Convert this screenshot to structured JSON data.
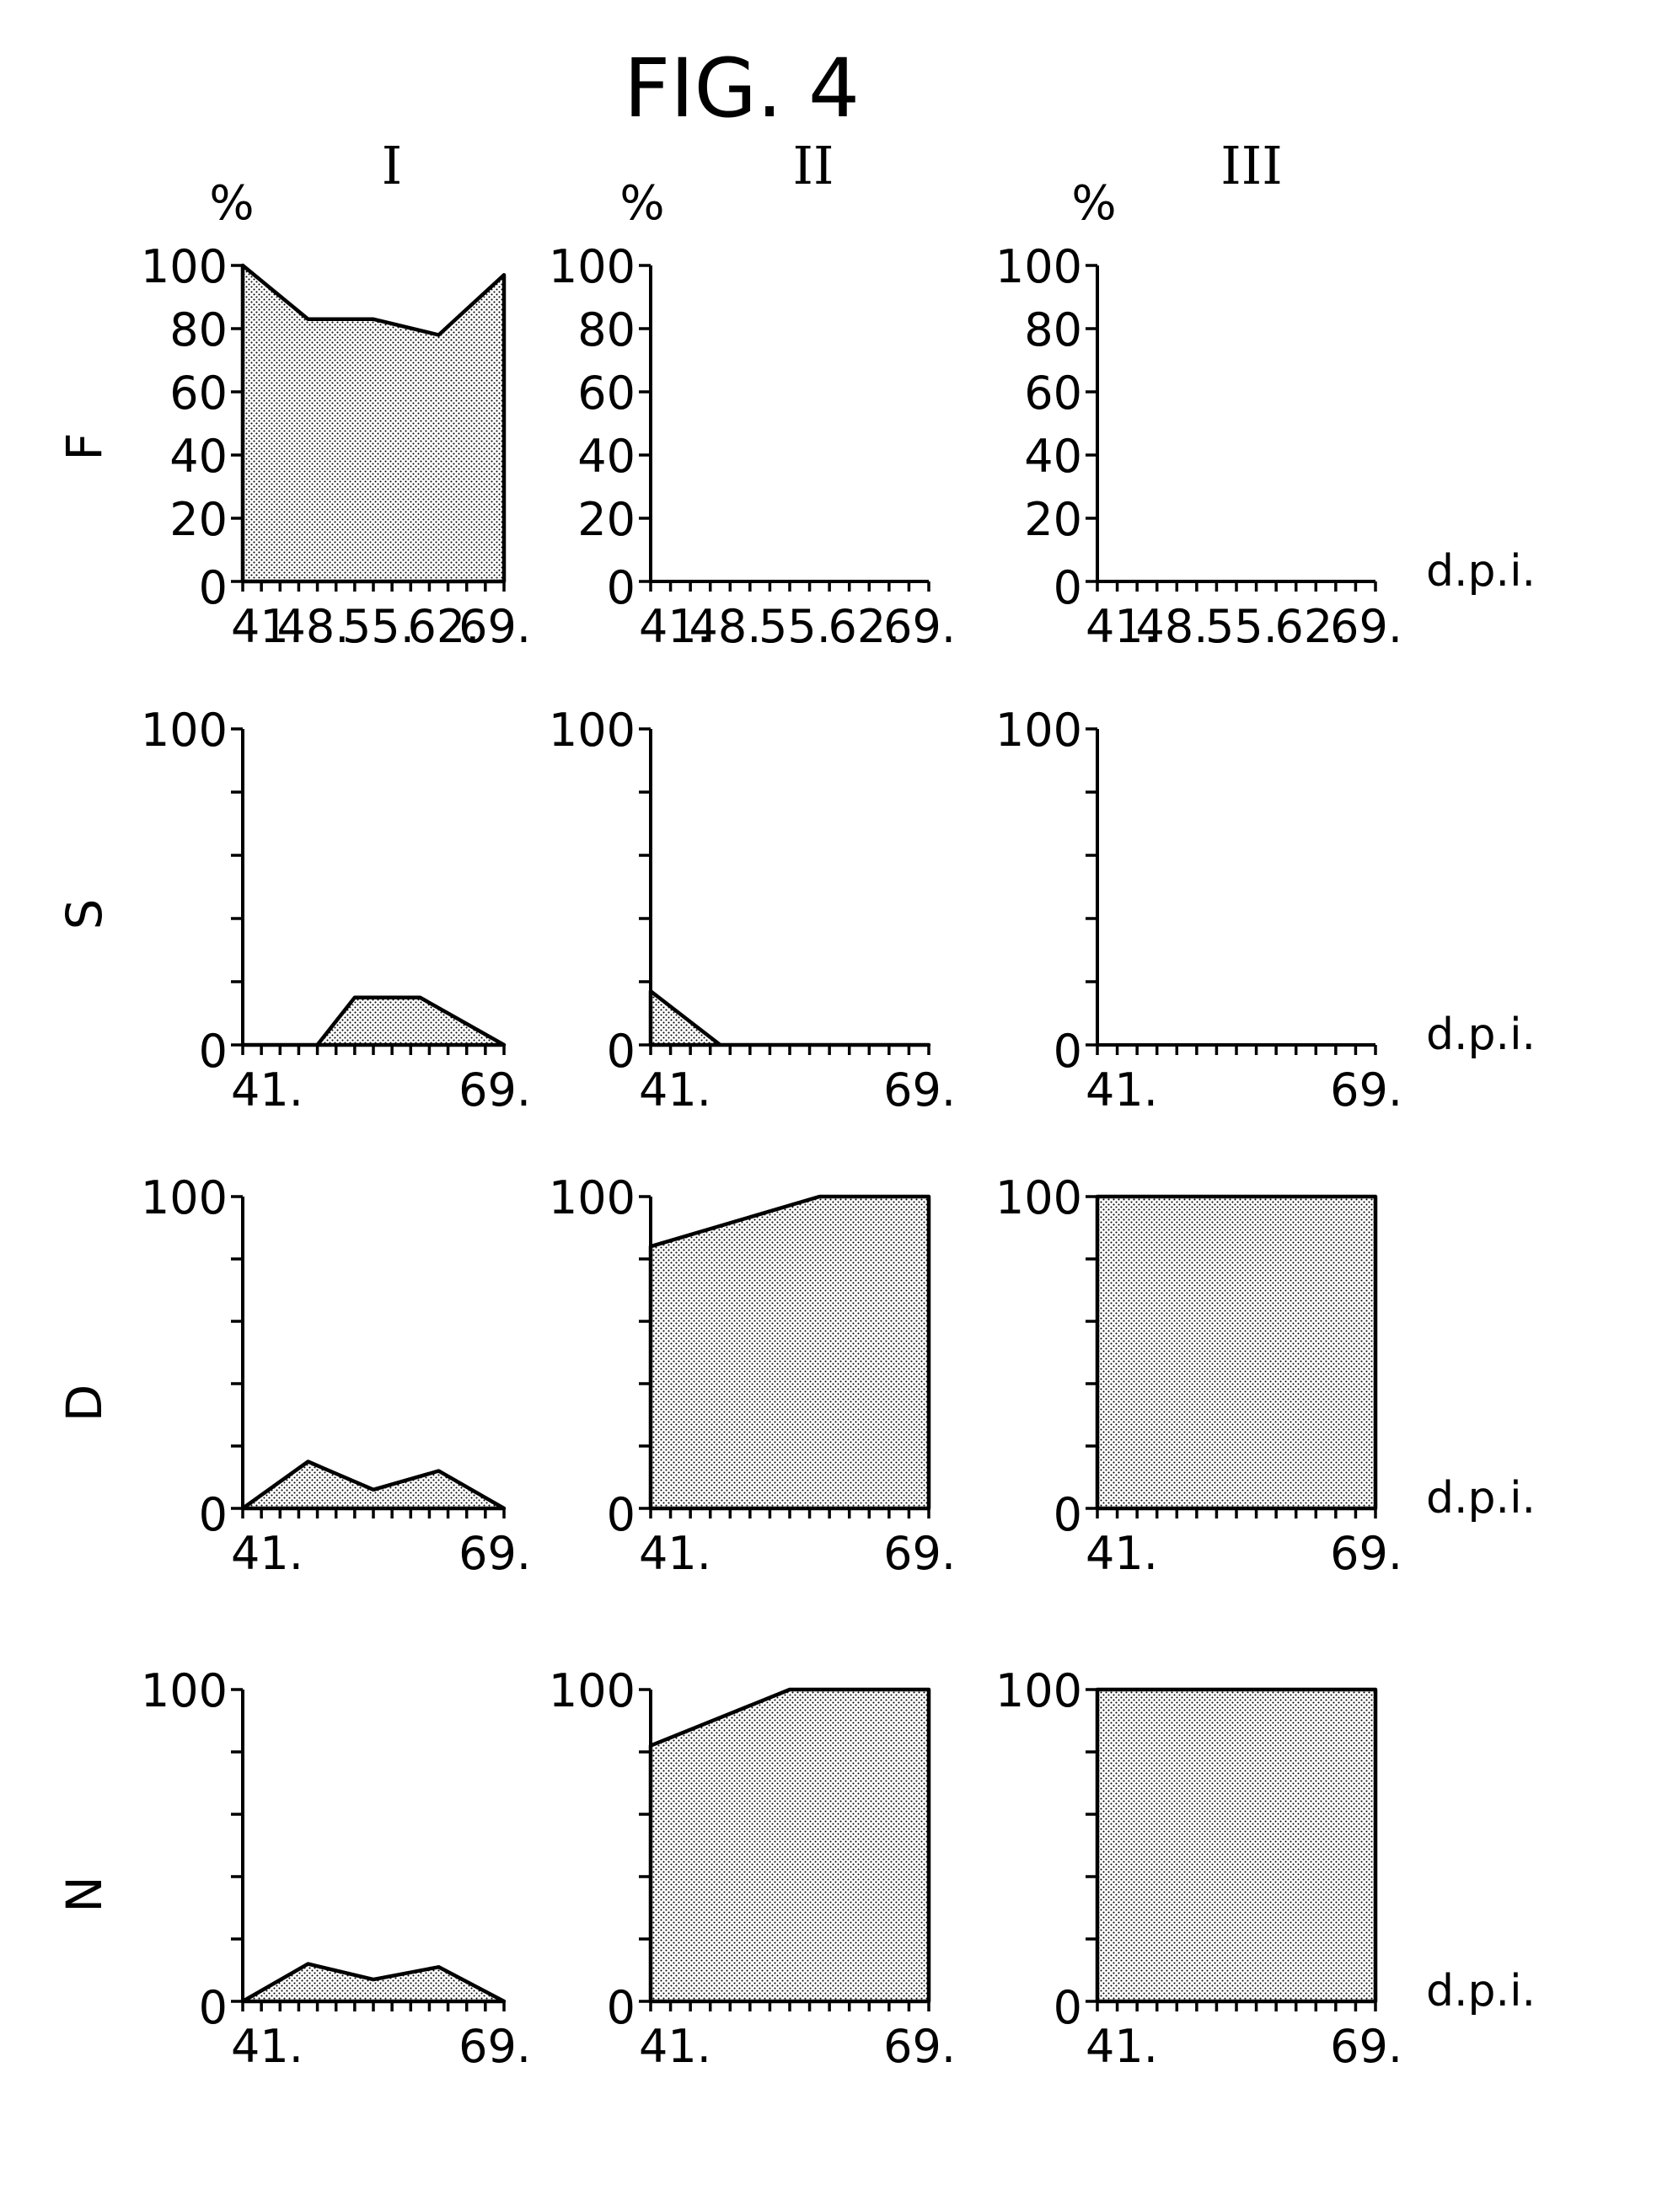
{
  "figure": {
    "title": "FIG. 4",
    "column_headers": [
      "I",
      "II",
      "III"
    ],
    "percent_label": "%",
    "row_labels": [
      "F",
      "S",
      "D",
      "N"
    ],
    "unit_label": "d.p.i.",
    "pattern_color": "#000000"
  },
  "chart_data": [
    {
      "type": "area",
      "row": "F",
      "column": "I",
      "x": [
        41,
        48,
        55,
        62,
        69
      ],
      "values": [
        100,
        83,
        83,
        78,
        97
      ],
      "ylim": [
        0,
        100
      ],
      "xlim": [
        41,
        69
      ],
      "ylabel": "%",
      "yticks": [
        "0",
        "20",
        "40",
        "60",
        "80",
        "100"
      ],
      "xticks": [
        "41.",
        "48.",
        "55.",
        "62.",
        "69."
      ]
    },
    {
      "type": "area",
      "row": "F",
      "column": "II",
      "x": [
        41,
        48,
        55,
        62,
        69
      ],
      "values": [
        0,
        0,
        0,
        0,
        0
      ],
      "ylim": [
        0,
        100
      ],
      "xlim": [
        41,
        69
      ],
      "ylabel": "%",
      "yticks": [
        "0",
        "20",
        "40",
        "60",
        "80",
        "100"
      ],
      "xticks": [
        "41.",
        "48.",
        "55.",
        "62.",
        "69."
      ]
    },
    {
      "type": "area",
      "row": "F",
      "column": "III",
      "x": [
        41,
        48,
        55,
        62,
        69
      ],
      "values": [
        0,
        0,
        0,
        0,
        0
      ],
      "ylim": [
        0,
        100
      ],
      "xlim": [
        41,
        69
      ],
      "ylabel": "%",
      "yticks": [
        "0",
        "20",
        "40",
        "60",
        "80",
        "100"
      ],
      "xticks": [
        "41.",
        "48.",
        "55.",
        "62.",
        "69."
      ],
      "xunit": "d.p.i."
    },
    {
      "type": "area",
      "row": "S",
      "column": "I",
      "x": [
        41,
        49,
        53,
        60,
        69
      ],
      "values": [
        0,
        0,
        15,
        15,
        0
      ],
      "ylim": [
        0,
        100
      ],
      "xlim": [
        41,
        69
      ],
      "yticks": [
        "0",
        "100"
      ],
      "xticks": [
        "41.",
        "69."
      ]
    },
    {
      "type": "area",
      "row": "S",
      "column": "II",
      "x": [
        41,
        48,
        69
      ],
      "values": [
        17,
        0,
        0
      ],
      "ylim": [
        0,
        100
      ],
      "xlim": [
        41,
        69
      ],
      "yticks": [
        "0",
        "100"
      ],
      "xticks": [
        "41.",
        "69."
      ]
    },
    {
      "type": "area",
      "row": "S",
      "column": "III",
      "x": [
        41,
        69
      ],
      "values": [
        0,
        0
      ],
      "ylim": [
        0,
        100
      ],
      "xlim": [
        41,
        69
      ],
      "yticks": [
        "0",
        "100"
      ],
      "xticks": [
        "41.",
        "69."
      ],
      "xunit": "d.p.i."
    },
    {
      "type": "area",
      "row": "D",
      "column": "I",
      "x": [
        41,
        48,
        55,
        62,
        69
      ],
      "values": [
        0,
        15,
        6,
        12,
        0
      ],
      "ylim": [
        0,
        100
      ],
      "xlim": [
        41,
        69
      ],
      "yticks": [
        "0",
        "100"
      ],
      "xticks": [
        "41.",
        "69."
      ]
    },
    {
      "type": "area",
      "row": "D",
      "column": "II",
      "x": [
        41,
        58,
        69
      ],
      "values": [
        84,
        100,
        100
      ],
      "ylim": [
        0,
        100
      ],
      "xlim": [
        41,
        69
      ],
      "yticks": [
        "0",
        "100"
      ],
      "xticks": [
        "41.",
        "69."
      ]
    },
    {
      "type": "area",
      "row": "D",
      "column": "III",
      "x": [
        41,
        69
      ],
      "values": [
        100,
        100
      ],
      "ylim": [
        0,
        100
      ],
      "xlim": [
        41,
        69
      ],
      "yticks": [
        "0",
        "100"
      ],
      "xticks": [
        "41.",
        "69."
      ],
      "xunit": "d.p.i."
    },
    {
      "type": "area",
      "row": "N",
      "column": "I",
      "x": [
        41,
        48,
        55,
        62,
        69
      ],
      "values": [
        0,
        12,
        7,
        11,
        0
      ],
      "ylim": [
        0,
        100
      ],
      "xlim": [
        41,
        69
      ],
      "yticks": [
        "0",
        "100"
      ],
      "xticks": [
        "41.",
        "69."
      ]
    },
    {
      "type": "area",
      "row": "N",
      "column": "II",
      "x": [
        41,
        55,
        69
      ],
      "values": [
        82,
        100,
        100
      ],
      "ylim": [
        0,
        100
      ],
      "xlim": [
        41,
        69
      ],
      "yticks": [
        "0",
        "100"
      ],
      "xticks": [
        "41.",
        "69."
      ]
    },
    {
      "type": "area",
      "row": "N",
      "column": "III",
      "x": [
        41,
        69
      ],
      "values": [
        100,
        100
      ],
      "ylim": [
        0,
        100
      ],
      "xlim": [
        41,
        69
      ],
      "yticks": [
        "0",
        "100"
      ],
      "xticks": [
        "41.",
        "69."
      ],
      "xunit": "d.p.i."
    }
  ]
}
